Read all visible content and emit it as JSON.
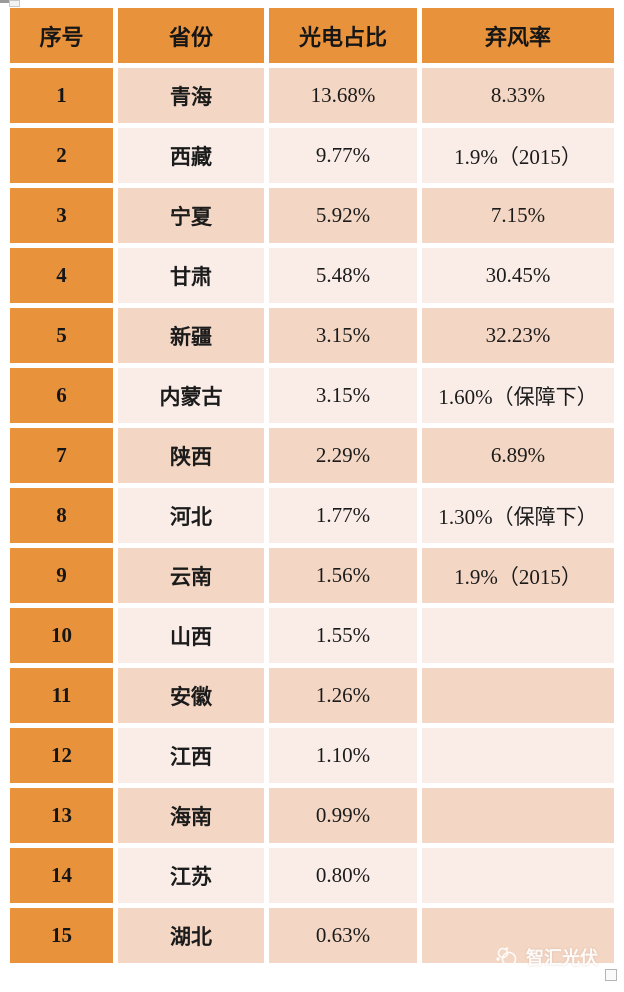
{
  "chart_data": {
    "type": "table",
    "columns": [
      "序号",
      "省份",
      "光电占比",
      "弃风率"
    ],
    "rows": [
      [
        "1",
        "青海",
        "13.68%",
        "8.33%"
      ],
      [
        "2",
        "西藏",
        "9.77%",
        "1.9%（2015）"
      ],
      [
        "3",
        "宁夏",
        "5.92%",
        "7.15%"
      ],
      [
        "4",
        "甘肃",
        "5.48%",
        "30.45%"
      ],
      [
        "5",
        "新疆",
        "3.15%",
        "32.23%"
      ],
      [
        "6",
        "内蒙古",
        "3.15%",
        "1.60%（保障下）"
      ],
      [
        "7",
        "陕西",
        "2.29%",
        "6.89%"
      ],
      [
        "8",
        "河北",
        "1.77%",
        "1.30%（保障下）"
      ],
      [
        "9",
        "云南",
        "1.56%",
        "1.9%（2015）"
      ],
      [
        "10",
        "山西",
        "1.55%",
        ""
      ],
      [
        "11",
        "安徽",
        "1.26%",
        ""
      ],
      [
        "12",
        "江西",
        "1.10%",
        ""
      ],
      [
        "13",
        "海南",
        "0.99%",
        ""
      ],
      [
        "14",
        "江苏",
        "0.80%",
        ""
      ],
      [
        "15",
        "湖北",
        "0.63%",
        ""
      ]
    ]
  },
  "watermark": {
    "text": "智汇光伏"
  },
  "colors": {
    "header_orange": "#E8923C",
    "row_dark": "#F3D6C3",
    "row_light": "#FAEDE7",
    "text": "#1b1b1b"
  }
}
